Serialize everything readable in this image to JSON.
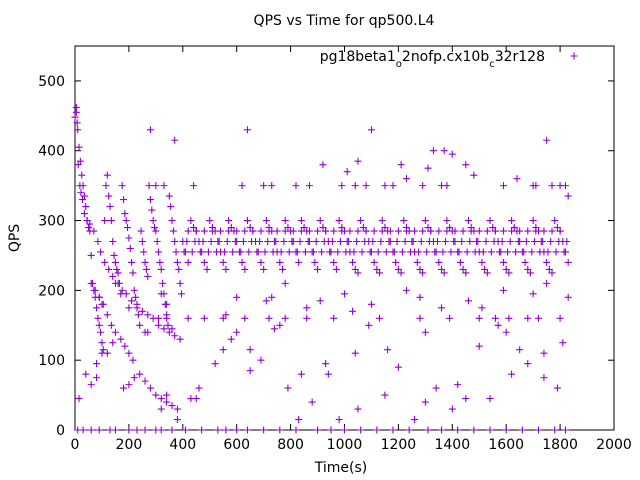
{
  "chart_data": {
    "type": "scatter",
    "title": "QPS vs Time for qp500.L4",
    "xlabel": "Time(s)",
    "ylabel": "QPS",
    "xlim": [
      0,
      2000
    ],
    "ylim": [
      0,
      550
    ],
    "xticks": [
      0,
      200,
      400,
      600,
      800,
      1000,
      1200,
      1400,
      1600,
      1800,
      2000
    ],
    "yticks": [
      0,
      100,
      200,
      300,
      400,
      500
    ],
    "grid": false,
    "legend_position": "top-right",
    "marker": "plus",
    "series": [
      {
        "name": "pg18beta1_o2nofp.cx10b_c32r128",
        "name_parts": {
          "base": "pg18beta1",
          "sub1": "o",
          "mid": "2nofp.cx10b",
          "sub2": "c",
          "tail": "32r128"
        },
        "color": "#9400d3",
        "x": [
          0,
          5,
          10,
          15,
          20,
          25,
          30,
          35,
          40,
          45,
          50,
          55,
          60,
          65,
          70,
          75,
          80,
          85,
          90,
          95,
          100,
          105,
          110,
          115,
          120,
          125,
          130,
          135,
          140,
          145,
          150,
          155,
          160,
          165,
          170,
          175,
          180,
          185,
          190,
          195,
          200,
          205,
          210,
          215,
          220,
          225,
          230,
          235,
          240,
          245,
          250,
          255,
          260,
          265,
          270,
          275,
          280,
          285,
          290,
          295,
          300,
          305,
          310,
          315,
          320,
          325,
          330,
          335,
          340,
          345,
          350,
          355,
          360,
          365,
          370,
          375,
          380,
          385,
          390,
          395,
          400,
          410,
          420,
          430,
          440,
          450,
          460,
          470,
          480,
          490,
          500,
          510,
          520,
          530,
          540,
          550,
          560,
          570,
          580,
          590,
          600,
          610,
          620,
          630,
          640,
          650,
          660,
          670,
          680,
          690,
          700,
          710,
          720,
          730,
          740,
          750,
          760,
          770,
          780,
          790,
          800,
          810,
          820,
          830,
          840,
          850,
          860,
          870,
          880,
          890,
          900,
          910,
          920,
          930,
          940,
          950,
          960,
          970,
          980,
          990,
          1000,
          1010,
          1020,
          1030,
          1040,
          1050,
          1060,
          1070,
          1080,
          1090,
          1100,
          1110,
          1120,
          1130,
          1140,
          1150,
          1160,
          1170,
          1180,
          1190,
          1200,
          1210,
          1220,
          1230,
          1240,
          1250,
          1260,
          1270,
          1280,
          1290,
          1300,
          1310,
          1320,
          1330,
          1340,
          1350,
          1360,
          1370,
          1380,
          1390,
          1400,
          1410,
          1420,
          1430,
          1440,
          1450,
          1460,
          1470,
          1480,
          1490,
          1500,
          1510,
          1520,
          1530,
          1540,
          1550,
          1560,
          1570,
          1580,
          1590,
          1600,
          1610,
          1620,
          1630,
          1640,
          1650,
          1660,
          1670,
          1680,
          1690,
          1700,
          1710,
          1720,
          1730,
          1740,
          1750,
          1760,
          1770,
          1780,
          1790,
          1800,
          1810,
          1820,
          1830,
          5,
          8,
          12,
          18,
          22,
          28,
          35,
          45,
          55,
          70,
          85,
          95,
          110,
          125,
          140,
          160,
          175,
          190,
          210,
          230,
          250,
          270,
          290,
          310,
          330,
          350,
          370,
          390,
          420,
          450,
          480,
          510,
          540,
          570,
          600,
          630,
          660,
          690,
          720,
          750,
          780,
          810,
          840,
          870,
          900,
          930,
          960,
          990,
          1020,
          1050,
          1080,
          1110,
          1140,
          1170,
          1200,
          1230,
          1260,
          1290,
          1320,
          1350,
          1380,
          1410,
          1440,
          1470,
          1500,
          1530,
          1560,
          1590,
          1620,
          1650,
          1680,
          1710,
          1740,
          1770,
          1800,
          415,
          445,
          475,
          505,
          535,
          565,
          595,
          625,
          655,
          685,
          715,
          745,
          775,
          805,
          835,
          865,
          895,
          925,
          955,
          985,
          1015,
          1045,
          1075,
          1105,
          1135,
          1165,
          1195,
          1225,
          1255,
          1285,
          1315,
          1345,
          1375,
          1405,
          1435,
          1465,
          1495,
          1525,
          1555,
          1585,
          1615,
          1645,
          1675,
          1705,
          1735,
          1765,
          1795,
          1825,
          405,
          435,
          465,
          495,
          525,
          555,
          585,
          615,
          645,
          675,
          705,
          735,
          765,
          795,
          825,
          855,
          885,
          915,
          945,
          975,
          1005,
          1035,
          1065,
          1095,
          1125,
          1155,
          1185,
          1215,
          1245,
          1275,
          1305,
          1335,
          1365,
          1395,
          1425,
          1455,
          1485,
          1515,
          1545,
          1575,
          1605,
          1635,
          1665,
          1695,
          1725,
          1755,
          1785,
          1815,
          60,
          75,
          90,
          100,
          120,
          135,
          150,
          170,
          185,
          200,
          215,
          240,
          260,
          280,
          300,
          320,
          340,
          360,
          380,
          280,
          370,
          640,
          1100,
          1370,
          1400,
          1750,
          1450,
          1210,
          920,
          1010,
          1050,
          1330,
          1310,
          1640,
          1230,
          1290,
          1480,
          1830,
          300,
          330,
          440,
          620,
          700,
          730,
          820,
          870,
          990,
          1040,
          1080,
          1150,
          1180,
          1360,
          1380,
          1590,
          1700,
          1710,
          1770,
          1800,
          1820,
          10,
          30,
          60,
          90,
          130,
          150,
          200,
          230,
          260,
          300,
          320,
          360,
          410,
          470,
          530,
          560,
          600,
          640,
          700,
          760,
          820,
          900,
          950,
          1000,
          1060,
          1120,
          1180,
          1240,
          1310,
          1360,
          1420,
          1480,
          1540,
          1600,
          1660,
          1720,
          1780,
          1820,
          15,
          40,
          80,
          100,
          140,
          180,
          220,
          270,
          310,
          340,
          380,
          430,
          460,
          520,
          550,
          580,
          650,
          690,
          740,
          790,
          830,
          880,
          940,
          980,
          1040,
          1090,
          1150,
          1200,
          1260,
          1300,
          1340,
          1400,
          1450,
          1500,
          1570,
          1620,
          1680,
          1740,
          1790,
          340,
          420,
          480,
          630,
          720,
          780,
          860,
          960,
          1130,
          1280,
          1390,
          1500,
          1560,
          1610,
          1680,
          1720,
          1800,
          60,
          80,
          120,
          200,
          260,
          320,
          360,
          450,
          550,
          600,
          650,
          760,
          840,
          930,
          1050,
          1160,
          1300,
          1420,
          1540,
          1600,
          1650,
          1740,
          1810,
          90,
          105,
          150,
          200,
          320,
          340,
          560,
          600,
          710,
          730,
          780,
          860,
          910,
          1000,
          1030,
          1100,
          1230,
          1280,
          1360,
          1460,
          1510,
          1590,
          1700,
          1750,
          1830
        ],
        "y": [
          448,
          462,
          430,
          405,
          385,
          365,
          350,
          335,
          320,
          300,
          290,
          285,
          250,
          210,
          200,
          190,
          175,
          160,
          150,
          140,
          125,
          115,
          300,
          350,
          365,
          335,
          320,
          300,
          270,
          250,
          240,
          230,
          225,
          210,
          195,
          350,
          330,
          310,
          300,
          290,
          275,
          260,
          240,
          225,
          200,
          190,
          180,
          165,
          150,
          285,
          270,
          255,
          240,
          230,
          220,
          350,
          330,
          315,
          300,
          290,
          285,
          270,
          255,
          240,
          230,
          210,
          195,
          180,
          165,
          150,
          335,
          320,
          300,
          285,
          270,
          255,
          240,
          230,
          210,
          195,
          270,
          255,
          240,
          300,
          290,
          285,
          270,
          255,
          240,
          230,
          300,
          290,
          285,
          270,
          255,
          240,
          230,
          300,
          290,
          285,
          270,
          255,
          240,
          230,
          300,
          290,
          285,
          270,
          255,
          240,
          230,
          300,
          290,
          285,
          270,
          255,
          240,
          230,
          300,
          290,
          285,
          270,
          255,
          240,
          300,
          290,
          285,
          270,
          255,
          240,
          230,
          300,
          290,
          285,
          270,
          255,
          240,
          230,
          300,
          290,
          285,
          270,
          255,
          240,
          230,
          225,
          300,
          290,
          285,
          270,
          255,
          240,
          230,
          225,
          300,
          290,
          285,
          270,
          255,
          240,
          230,
          225,
          300,
          290,
          285,
          270,
          255,
          240,
          230,
          225,
          300,
          290,
          285,
          270,
          255,
          240,
          230,
          225,
          300,
          290,
          285,
          270,
          255,
          240,
          230,
          225,
          300,
          290,
          285,
          270,
          255,
          240,
          230,
          225,
          300,
          290,
          285,
          270,
          255,
          240,
          230,
          225,
          300,
          290,
          285,
          270,
          255,
          240,
          230,
          225,
          300,
          290,
          285,
          270,
          255,
          240,
          230,
          225,
          300,
          290,
          285,
          270,
          255,
          240,
          455,
          440,
          380,
          350,
          340,
          330,
          310,
          300,
          295,
          285,
          270,
          255,
          240,
          230,
          220,
          210,
          200,
          195,
          185,
          175,
          170,
          165,
          160,
          150,
          145,
          140,
          135,
          130,
          285,
          285,
          285,
          285,
          285,
          285,
          285,
          285,
          285,
          285,
          285,
          285,
          285,
          285,
          285,
          285,
          285,
          285,
          285,
          285,
          285,
          285,
          285,
          285,
          285,
          285,
          285,
          285,
          285,
          285,
          285,
          285,
          285,
          285,
          285,
          285,
          285,
          285,
          285,
          285,
          285,
          285,
          285,
          285,
          285,
          285,
          285,
          270,
          270,
          270,
          270,
          270,
          270,
          270,
          270,
          270,
          270,
          270,
          270,
          270,
          270,
          270,
          270,
          270,
          270,
          270,
          270,
          270,
          270,
          270,
          270,
          270,
          270,
          270,
          270,
          270,
          270,
          270,
          270,
          270,
          270,
          270,
          270,
          270,
          270,
          270,
          270,
          270,
          270,
          270,
          270,
          270,
          270,
          270,
          270,
          255,
          255,
          255,
          255,
          255,
          255,
          255,
          255,
          255,
          255,
          255,
          255,
          255,
          255,
          255,
          255,
          255,
          255,
          255,
          255,
          255,
          255,
          255,
          255,
          255,
          255,
          255,
          255,
          255,
          255,
          255,
          255,
          255,
          255,
          255,
          255,
          255,
          255,
          255,
          255,
          255,
          255,
          255,
          255,
          255,
          255,
          255,
          255,
          210,
          200,
          190,
          180,
          165,
          150,
          140,
          130,
          120,
          110,
          100,
          80,
          70,
          60,
          50,
          45,
          40,
          35,
          30,
          430,
          415,
          430,
          430,
          400,
          395,
          415,
          380,
          380,
          380,
          370,
          385,
          400,
          375,
          360,
          360,
          350,
          365,
          335,
          350,
          350,
          350,
          350,
          350,
          350,
          350,
          350,
          350,
          350,
          350,
          350,
          350,
          350,
          350,
          350,
          350,
          350,
          350,
          350,
          350,
          0,
          0,
          0,
          0,
          0,
          0,
          0,
          0,
          0,
          0,
          0,
          0,
          0,
          0,
          0,
          0,
          0,
          0,
          0,
          0,
          0,
          0,
          0,
          0,
          0,
          0,
          0,
          0,
          0,
          0,
          0,
          0,
          0,
          0,
          0,
          0,
          0,
          0,
          45,
          80,
          95,
          110,
          125,
          60,
          75,
          140,
          160,
          50,
          15,
          45,
          60,
          95,
          115,
          130,
          85,
          100,
          145,
          60,
          15,
          40,
          80,
          15,
          110,
          150,
          50,
          90,
          15,
          40,
          60,
          30,
          45,
          120,
          150,
          80,
          95,
          110,
          60,
          160,
          160,
          160,
          160,
          160,
          160,
          160,
          160,
          160,
          160,
          160,
          160,
          160,
          160,
          160,
          160,
          160,
          65,
          75,
          110,
          65,
          140,
          30,
          145,
          45,
          160,
          140,
          115,
          150,
          80,
          95,
          30,
          115,
          140,
          65,
          45,
          140,
          115,
          75,
          125,
          190,
          180,
          210,
          175,
          195,
          180,
          165,
          190,
          185,
          190,
          210,
          175,
          185,
          195,
          170,
          180,
          200,
          190,
          175,
          185,
          175,
          200,
          195,
          210,
          190
        ]
      }
    ]
  }
}
